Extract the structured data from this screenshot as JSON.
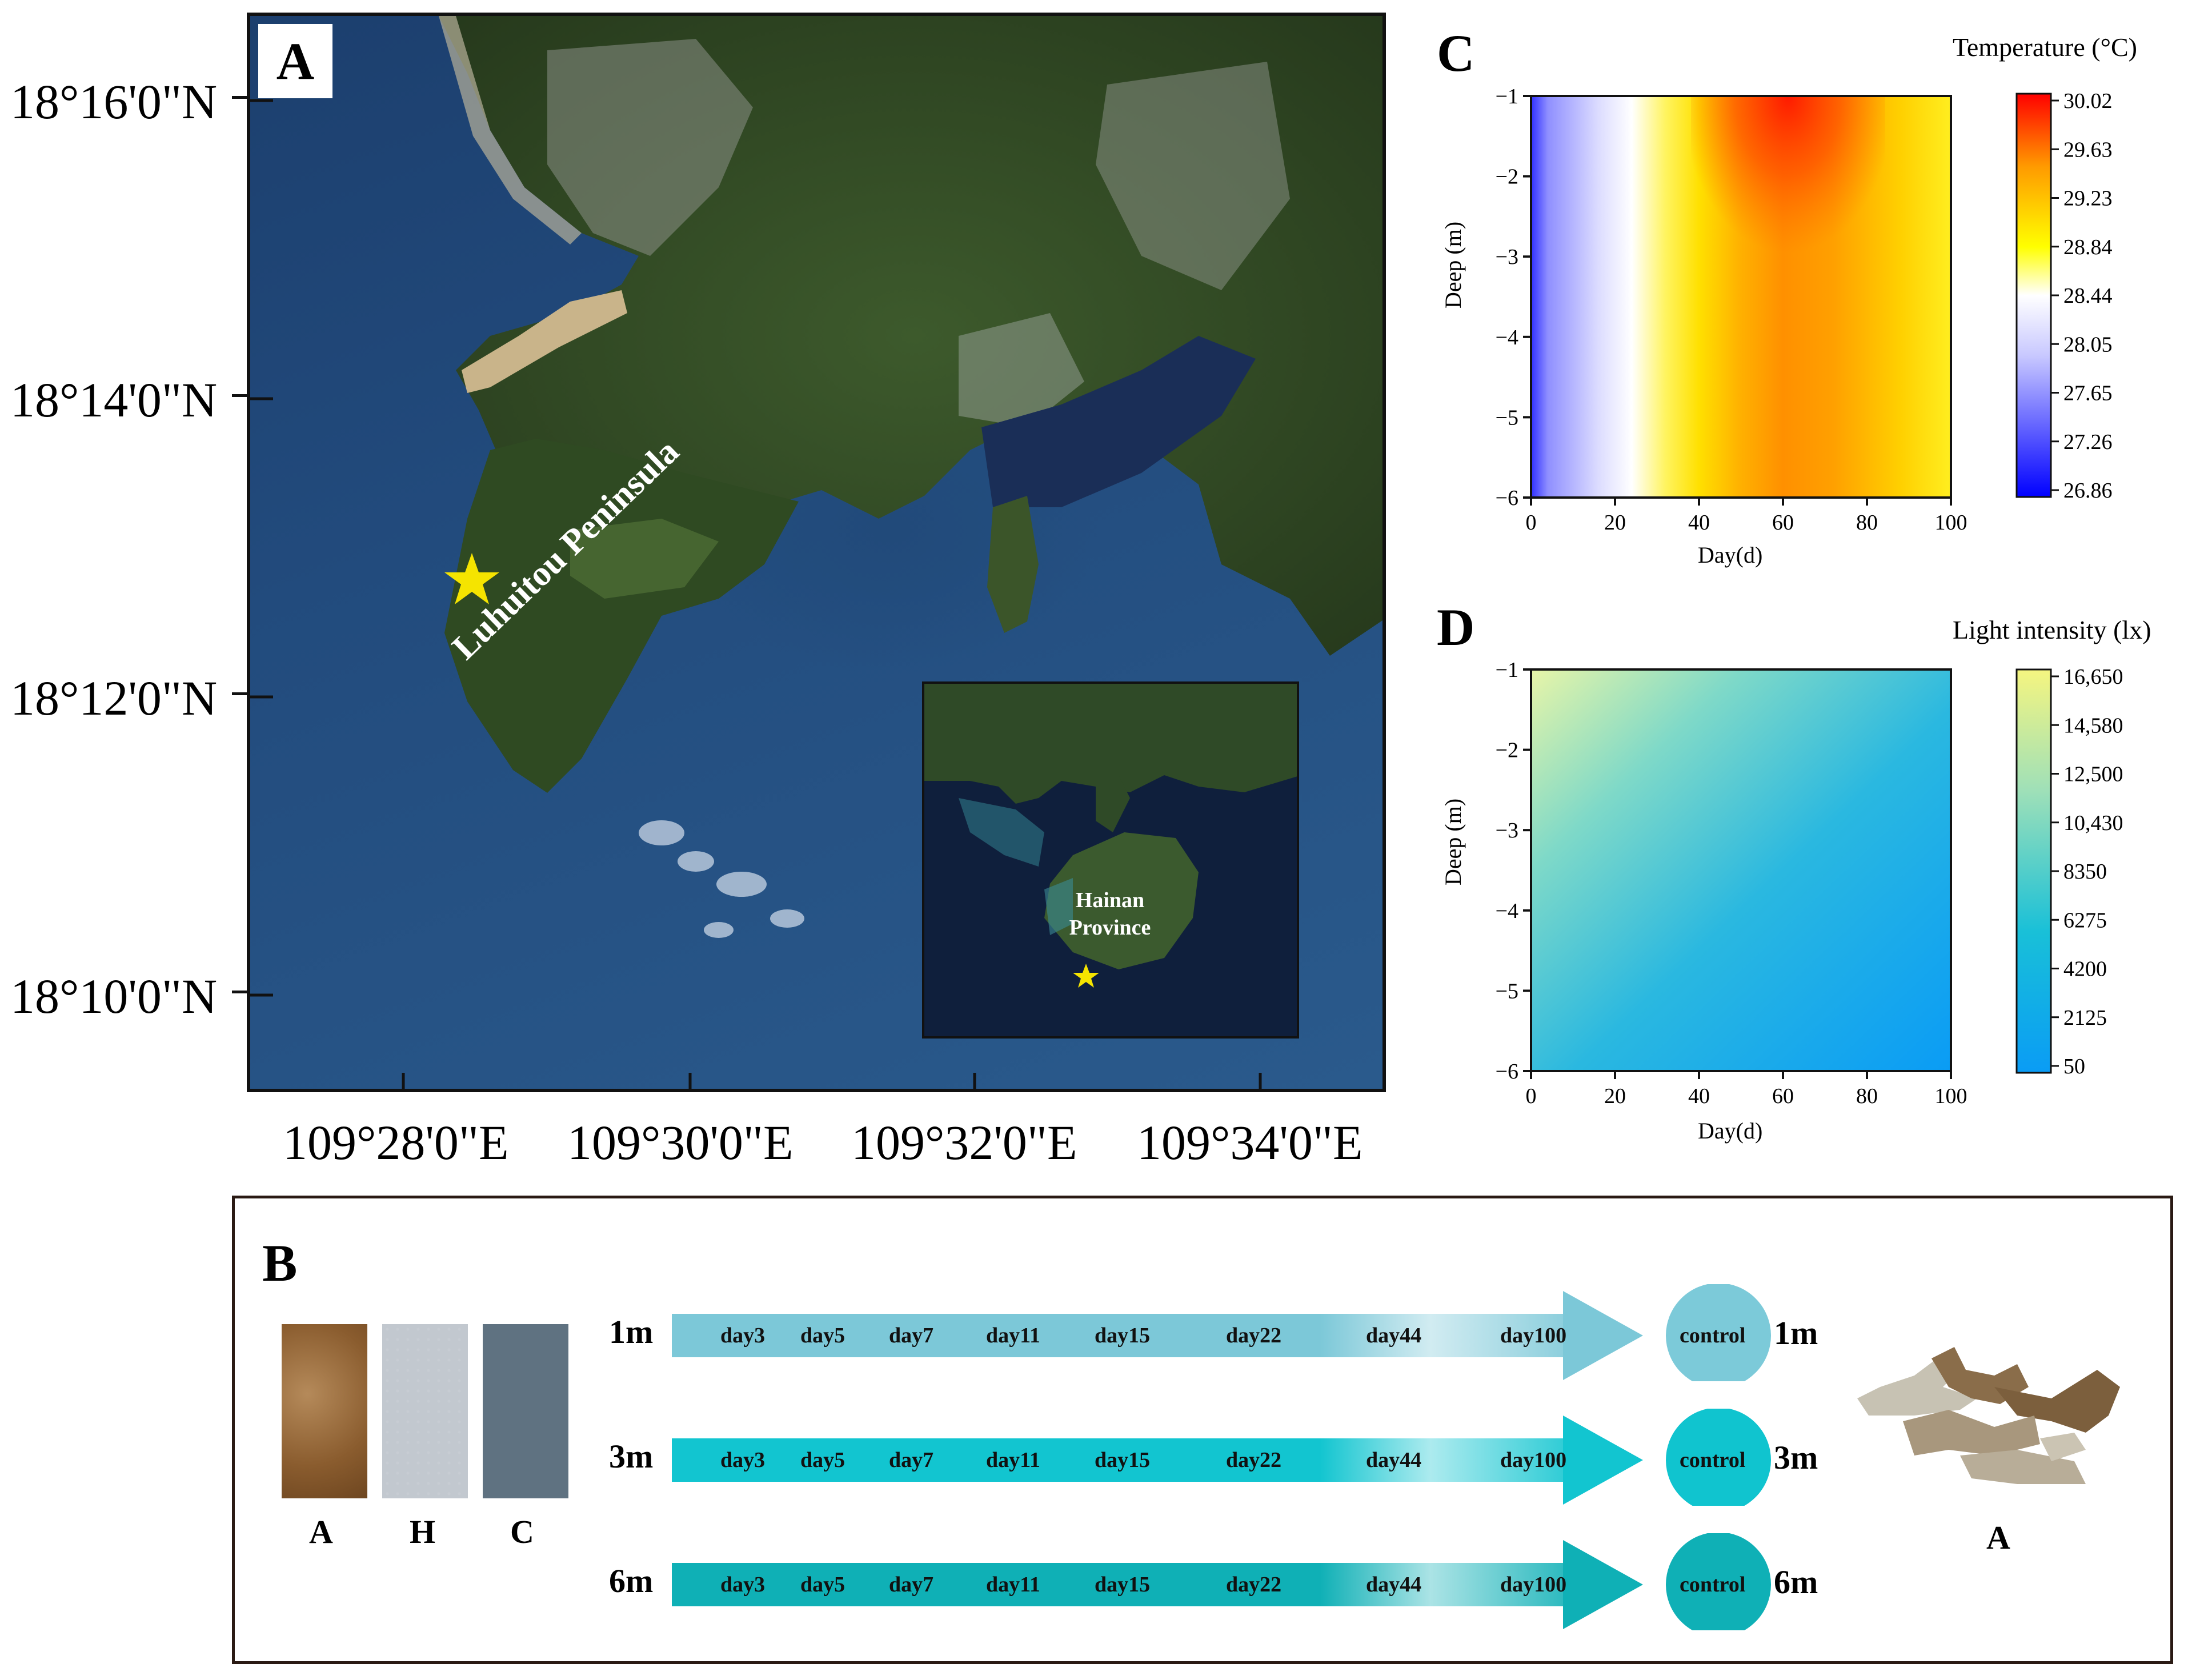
{
  "panels": {
    "A": "A",
    "B": "B",
    "C": "C",
    "D": "D"
  },
  "map": {
    "lat_labels": [
      "18°16'0\"N",
      "18°14'0\"N",
      "18°12'0\"N",
      "18°10'0\"N"
    ],
    "lon_labels": [
      "109°28'0\"E",
      "109°30'0\"E",
      "109°32'0\"E",
      "109°34'0\"E"
    ],
    "peninsula_label": "Luhuitou Peninsula",
    "inset_label_line1": "Hainan",
    "inset_label_line2": "Province",
    "site_marker_color": "#f5e400"
  },
  "chart_data": [
    {
      "type": "heatmap",
      "panel": "C",
      "title": "Temperature (°C)",
      "xlabel": "Day(d)",
      "ylabel": "Deep (m)",
      "xlim": [
        0,
        100
      ],
      "ylim": [
        -6,
        -1
      ],
      "x_ticks": [
        "0",
        "20",
        "40",
        "60",
        "80",
        "100"
      ],
      "y_ticks": [
        "−1",
        "−2",
        "−3",
        "−4",
        "−5",
        "−6"
      ],
      "colorbar_ticks": [
        "30.02",
        "29.63",
        "29.23",
        "28.84",
        "28.44",
        "28.05",
        "27.65",
        "27.26",
        "26.86"
      ],
      "colorbar_range": [
        26.86,
        30.02
      ],
      "colormap": [
        "#0000ff",
        "#ffffff",
        "#ffff00",
        "#ff8c00",
        "#ff0000"
      ]
    },
    {
      "type": "heatmap",
      "panel": "D",
      "title": "Light intensity (lx)",
      "xlabel": "Day(d)",
      "ylabel": "Deep (m)",
      "xlim": [
        0,
        100
      ],
      "ylim": [
        -6,
        -1
      ],
      "x_ticks": [
        "0",
        "20",
        "40",
        "60",
        "80",
        "100"
      ],
      "y_ticks": [
        "−1",
        "−2",
        "−3",
        "−4",
        "−5",
        "−6"
      ],
      "colorbar_ticks": [
        "16,650",
        "14,580",
        "12,500",
        "10,430",
        "8350",
        "6275",
        "4200",
        "2125",
        "50"
      ],
      "colorbar_range": [
        50,
        16650
      ],
      "colormap": [
        "#0a9cf5",
        "#19c0d8",
        "#7fd9c0",
        "#f5f59a"
      ]
    }
  ],
  "design": {
    "rows": [
      {
        "depth": "1m",
        "color": "#7cc8d8",
        "circle_color": "#7ccad9"
      },
      {
        "depth": "3m",
        "color": "#12c5d0",
        "circle_color": "#10c4cf"
      },
      {
        "depth": "6m",
        "color": "#0fb0b6",
        "circle_color": "#0fb0b6"
      }
    ],
    "days": [
      "day3",
      "day5",
      "day7",
      "day11",
      "day15",
      "day22",
      "day44",
      "day100"
    ],
    "control_label": "control",
    "samples": [
      "A",
      "H",
      "C"
    ],
    "coral_label": "A"
  }
}
